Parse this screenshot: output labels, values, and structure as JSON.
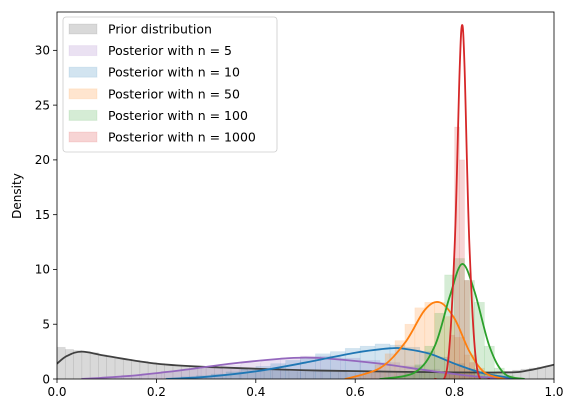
{
  "chart_data": {
    "type": "area",
    "ylabel": "Density",
    "xlabel": "",
    "title": "",
    "xlim": [
      0.0,
      1.0
    ],
    "ylim": [
      0,
      33.5
    ],
    "xticks": [
      "0.0",
      "0.2",
      "0.4",
      "0.6",
      "0.8",
      "1.0"
    ],
    "yticks": [
      "0",
      "5",
      "10",
      "15",
      "20",
      "25",
      "30"
    ],
    "legend": {
      "placement": "top-left"
    },
    "legend_entries": [
      "Prior distribution",
      "Posterior with n = 5",
      "Posterior with n = 10",
      "Posterior with n = 50",
      "Posterior with n = 100",
      "Posterior with n = 1000"
    ],
    "series": [
      {
        "name": "Prior distribution",
        "color": "#404040",
        "x": [
          0.0,
          0.02,
          0.05,
          0.1,
          0.2,
          0.3,
          0.5,
          0.7,
          0.9,
          0.95,
          1.0
        ],
        "y": [
          1.4,
          2.1,
          2.5,
          2.1,
          1.4,
          1.1,
          0.8,
          0.65,
          0.6,
          0.8,
          1.3
        ],
        "hist": {
          "x0": 0.0,
          "x1": 1.0,
          "bins": 60,
          "values": [
            2.9,
            2.7,
            2.6,
            2.5,
            2.4,
            2.2,
            2.0,
            1.9,
            1.8,
            1.7,
            1.6,
            1.5,
            1.4,
            1.3,
            1.2,
            1.2,
            1.1,
            1.1,
            1.0,
            1.0,
            0.9,
            0.9,
            0.9,
            0.8,
            0.8,
            0.8,
            0.8,
            0.8,
            0.7,
            0.7,
            0.7,
            0.7,
            0.7,
            0.7,
            0.7,
            0.6,
            0.6,
            0.6,
            0.6,
            0.6,
            0.6,
            0.6,
            0.6,
            0.6,
            0.6,
            0.6,
            0.6,
            0.6,
            0.6,
            0.6,
            0.6,
            0.6,
            0.6,
            0.6,
            0.7,
            0.8,
            0.9,
            1.0,
            1.1,
            1.2
          ]
        }
      },
      {
        "name": "Posterior with n = 5",
        "color": "#9467bd",
        "x": [
          0.05,
          0.15,
          0.25,
          0.35,
          0.45,
          0.5,
          0.55,
          0.65,
          0.75,
          0.85,
          0.93
        ],
        "y": [
          0.0,
          0.3,
          0.8,
          1.4,
          1.85,
          1.95,
          1.85,
          1.4,
          0.75,
          0.2,
          0.0
        ],
        "hist": {
          "x0": 0.05,
          "x1": 0.93,
          "bins": 22,
          "values": [
            0.1,
            0.2,
            0.35,
            0.5,
            0.7,
            0.9,
            1.1,
            1.3,
            1.5,
            1.75,
            1.95,
            2.1,
            2.1,
            1.9,
            1.7,
            1.5,
            1.2,
            0.9,
            0.6,
            0.4,
            0.2,
            0.1
          ]
        }
      },
      {
        "name": "Posterior with n = 10",
        "color": "#1f77b4",
        "x": [
          0.22,
          0.3,
          0.4,
          0.5,
          0.6,
          0.67,
          0.7,
          0.75,
          0.8,
          0.86,
          0.93
        ],
        "y": [
          0.0,
          0.2,
          0.7,
          1.5,
          2.4,
          2.8,
          2.75,
          2.3,
          1.4,
          0.5,
          0.0
        ],
        "hist": {
          "x0": 0.22,
          "x1": 0.94,
          "bins": 24,
          "values": [
            0.1,
            0.2,
            0.3,
            0.45,
            0.65,
            0.9,
            1.15,
            1.4,
            1.7,
            2.0,
            2.3,
            2.5,
            2.8,
            3.0,
            3.2,
            3.1,
            2.9,
            2.5,
            2.0,
            1.4,
            0.9,
            0.5,
            0.2,
            0.1
          ]
        }
      },
      {
        "name": "Posterior with n = 50",
        "color": "#ff7f0e",
        "x": [
          0.58,
          0.65,
          0.7,
          0.74,
          0.77,
          0.8,
          0.83,
          0.86,
          0.9
        ],
        "y": [
          0.0,
          1.0,
          3.3,
          6.3,
          7.0,
          5.5,
          2.5,
          0.6,
          0.0
        ],
        "hist": {
          "x0": 0.58,
          "x1": 0.9,
          "bins": 16,
          "values": [
            0.1,
            0.3,
            0.7,
            1.3,
            2.3,
            3.5,
            5.0,
            6.5,
            7.0,
            7.0,
            5.7,
            3.8,
            2.2,
            1.0,
            0.4,
            0.1
          ]
        }
      },
      {
        "name": "Posterior with n = 100",
        "color": "#2ca02c",
        "x": [
          0.65,
          0.72,
          0.76,
          0.79,
          0.815,
          0.84,
          0.87,
          0.9,
          0.94
        ],
        "y": [
          0.0,
          0.6,
          3.0,
          7.5,
          10.5,
          8.0,
          3.0,
          0.5,
          0.0
        ],
        "hist": {
          "x0": 0.68,
          "x1": 0.92,
          "bins": 12,
          "values": [
            0.2,
            0.5,
            1.3,
            3.0,
            6.0,
            9.5,
            11.0,
            9.0,
            7.0,
            3.0,
            1.0,
            0.3
          ]
        }
      },
      {
        "name": "Posterior with n = 1000",
        "color": "#d62728",
        "x": [
          0.76,
          0.785,
          0.8,
          0.81,
          0.815,
          0.82,
          0.83,
          0.845,
          0.87
        ],
        "y": [
          0.0,
          1.0,
          12.0,
          28.0,
          32.3,
          28.5,
          12.0,
          1.0,
          0.0
        ],
        "hist": {
          "x0": 0.78,
          "x1": 0.85,
          "bins": 7,
          "values": [
            0.5,
            4.0,
            23.0,
            20.0,
            9.0,
            1.5,
            0.2
          ]
        }
      }
    ]
  }
}
